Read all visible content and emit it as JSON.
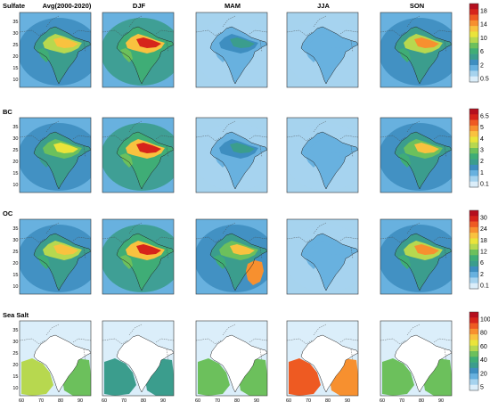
{
  "columns": [
    "Avg(2000-2020)",
    "DJF",
    "MAM",
    "JJA",
    "SON"
  ],
  "rows": [
    {
      "name": "Sulfate",
      "colorbar": {
        "ticks": [
          "18",
          "14",
          "10",
          "6",
          "2",
          "0.5"
        ],
        "colors": [
          "#b50f1e",
          "#d6241b",
          "#ee5a22",
          "#f7902f",
          "#f9c23f",
          "#eae43a",
          "#b7d84f",
          "#6cc05c",
          "#3fad76",
          "#3b9d8d",
          "#3e8ec0",
          "#68b1df",
          "#a6d3ee",
          "#dbeefa"
        ]
      },
      "intensity": [
        0.75,
        1.0,
        0.35,
        0.15,
        0.8
      ]
    },
    {
      "name": "BC",
      "colorbar": {
        "ticks": [
          "6.5",
          "5",
          "4",
          "3",
          "2",
          "1",
          "0.1"
        ],
        "colors": [
          "#b50f1e",
          "#d6241b",
          "#ee5a22",
          "#f7902f",
          "#f9c23f",
          "#eae43a",
          "#b7d84f",
          "#6cc05c",
          "#3fad76",
          "#3b9d8d",
          "#3e8ec0",
          "#68b1df",
          "#a6d3ee",
          "#dbeefa"
        ]
      },
      "intensity": [
        0.65,
        0.95,
        0.3,
        0.05,
        0.7
      ]
    },
    {
      "name": "OC",
      "colorbar": {
        "ticks": [
          "30",
          "24",
          "18",
          "12",
          "6",
          "2",
          "0.1"
        ],
        "colors": [
          "#b50f1e",
          "#d6241b",
          "#ee5a22",
          "#f7902f",
          "#f9c23f",
          "#eae43a",
          "#b7d84f",
          "#6cc05c",
          "#3fad76",
          "#3b9d8d",
          "#3e8ec0",
          "#68b1df",
          "#a6d3ee",
          "#dbeefa"
        ]
      },
      "intensity": [
        0.75,
        0.95,
        0.7,
        0.2,
        0.8
      ]
    },
    {
      "name": "Sea Salt",
      "colorbar": {
        "ticks": [
          "100",
          "80",
          "60",
          "40",
          "20",
          "5"
        ],
        "colors": [
          "#b50f1e",
          "#d6241b",
          "#ee5a22",
          "#f7902f",
          "#f9c23f",
          "#eae43a",
          "#b7d84f",
          "#6cc05c",
          "#3fad76",
          "#3b9d8d",
          "#3e8ec0",
          "#68b1df",
          "#a6d3ee",
          "#dbeefa"
        ]
      },
      "intensity": [
        0.6,
        0.4,
        0.55,
        1.0,
        0.55
      ]
    }
  ],
  "lat_ticks": [
    "35",
    "30",
    "25",
    "20",
    "15",
    "10"
  ],
  "lon_ticks": [
    "60",
    "70",
    "80",
    "90"
  ]
}
